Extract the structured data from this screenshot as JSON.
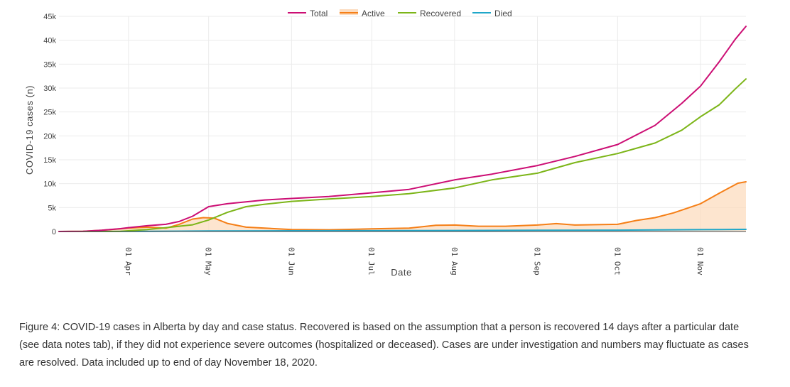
{
  "caption": "Figure 4: COVID-19 cases in Alberta by day and case status. Recovered is based on the assumption that a person is recovered 14 days after a particular date (see data notes tab), if they did not experience severe outcomes (hospitalized or deceased). Cases are under investigation and numbers may fluctuate as cases are resolved. Data included up to end of day November 18, 2020.",
  "chart_data": {
    "type": "line",
    "title": "",
    "xlabel": "Date",
    "ylabel": "COVID-19 cases (n)",
    "xlim": [
      "2020-03-06",
      "2020-11-18"
    ],
    "ylim": [
      0,
      45000
    ],
    "grid": true,
    "legend_position": "top-center",
    "x_ticks": [
      {
        "date": "2020-04-01",
        "label": "01 Apr"
      },
      {
        "date": "2020-05-01",
        "label": "01 May"
      },
      {
        "date": "2020-06-01",
        "label": "01 Jun"
      },
      {
        "date": "2020-07-01",
        "label": "01 Jul"
      },
      {
        "date": "2020-08-01",
        "label": "01 Aug"
      },
      {
        "date": "2020-09-01",
        "label": "01 Sep"
      },
      {
        "date": "2020-10-01",
        "label": "01 Oct"
      },
      {
        "date": "2020-11-01",
        "label": "01 Nov"
      }
    ],
    "y_ticks": [
      {
        "value": 0,
        "label": "0"
      },
      {
        "value": 5000,
        "label": "5k"
      },
      {
        "value": 10000,
        "label": "10k"
      },
      {
        "value": 15000,
        "label": "15k"
      },
      {
        "value": 20000,
        "label": "20k"
      },
      {
        "value": 25000,
        "label": "25k"
      },
      {
        "value": 30000,
        "label": "30k"
      },
      {
        "value": 35000,
        "label": "35k"
      },
      {
        "value": 40000,
        "label": "40k"
      },
      {
        "value": 45000,
        "label": "45k"
      }
    ],
    "series": [
      {
        "name": "Total",
        "color": "#cc0e74",
        "fill": false,
        "points": [
          [
            "2020-03-06",
            0
          ],
          [
            "2020-03-15",
            50
          ],
          [
            "2020-03-22",
            250
          ],
          [
            "2020-03-29",
            600
          ],
          [
            "2020-04-01",
            800
          ],
          [
            "2020-04-08",
            1200
          ],
          [
            "2020-04-15",
            1500
          ],
          [
            "2020-04-20",
            2100
          ],
          [
            "2020-04-25",
            3200
          ],
          [
            "2020-05-01",
            5200
          ],
          [
            "2020-05-08",
            5800
          ],
          [
            "2020-05-15",
            6200
          ],
          [
            "2020-05-22",
            6600
          ],
          [
            "2020-06-01",
            6900
          ],
          [
            "2020-06-15",
            7300
          ],
          [
            "2020-07-01",
            8100
          ],
          [
            "2020-07-15",
            8800
          ],
          [
            "2020-08-01",
            10800
          ],
          [
            "2020-08-15",
            12000
          ],
          [
            "2020-09-01",
            13800
          ],
          [
            "2020-09-15",
            15700
          ],
          [
            "2020-10-01",
            18200
          ],
          [
            "2020-10-15",
            22200
          ],
          [
            "2020-10-25",
            26800
          ],
          [
            "2020-11-01",
            30400
          ],
          [
            "2020-11-08",
            35500
          ],
          [
            "2020-11-14",
            40200
          ],
          [
            "2020-11-18",
            42900
          ]
        ]
      },
      {
        "name": "Active",
        "color": "#f57f17",
        "fill": true,
        "fill_color": "#fcdcbf",
        "points": [
          [
            "2020-03-06",
            0
          ],
          [
            "2020-03-15",
            50
          ],
          [
            "2020-03-22",
            250
          ],
          [
            "2020-03-29",
            550
          ],
          [
            "2020-04-01",
            700
          ],
          [
            "2020-04-08",
            900
          ],
          [
            "2020-04-15",
            700
          ],
          [
            "2020-04-20",
            1500
          ],
          [
            "2020-04-25",
            2600
          ],
          [
            "2020-04-29",
            2900
          ],
          [
            "2020-05-03",
            2800
          ],
          [
            "2020-05-08",
            1700
          ],
          [
            "2020-05-15",
            900
          ],
          [
            "2020-05-22",
            700
          ],
          [
            "2020-06-01",
            400
          ],
          [
            "2020-06-15",
            350
          ],
          [
            "2020-07-01",
            550
          ],
          [
            "2020-07-15",
            700
          ],
          [
            "2020-07-25",
            1300
          ],
          [
            "2020-08-01",
            1350
          ],
          [
            "2020-08-10",
            1100
          ],
          [
            "2020-08-20",
            1100
          ],
          [
            "2020-09-01",
            1350
          ],
          [
            "2020-09-08",
            1650
          ],
          [
            "2020-09-15",
            1350
          ],
          [
            "2020-09-25",
            1450
          ],
          [
            "2020-10-01",
            1500
          ],
          [
            "2020-10-08",
            2300
          ],
          [
            "2020-10-15",
            2900
          ],
          [
            "2020-10-22",
            3900
          ],
          [
            "2020-11-01",
            5800
          ],
          [
            "2020-11-08",
            8000
          ],
          [
            "2020-11-15",
            10100
          ],
          [
            "2020-11-18",
            10400
          ]
        ]
      },
      {
        "name": "Recovered",
        "color": "#7cb518",
        "fill": false,
        "points": [
          [
            "2020-03-06",
            0
          ],
          [
            "2020-03-29",
            50
          ],
          [
            "2020-04-08",
            400
          ],
          [
            "2020-04-15",
            800
          ],
          [
            "2020-04-25",
            1400
          ],
          [
            "2020-05-01",
            2400
          ],
          [
            "2020-05-08",
            4000
          ],
          [
            "2020-05-15",
            5200
          ],
          [
            "2020-05-22",
            5700
          ],
          [
            "2020-06-01",
            6300
          ],
          [
            "2020-06-15",
            6800
          ],
          [
            "2020-07-01",
            7300
          ],
          [
            "2020-07-15",
            7900
          ],
          [
            "2020-08-01",
            9100
          ],
          [
            "2020-08-15",
            10800
          ],
          [
            "2020-09-01",
            12200
          ],
          [
            "2020-09-15",
            14400
          ],
          [
            "2020-10-01",
            16300
          ],
          [
            "2020-10-15",
            18500
          ],
          [
            "2020-10-25",
            21200
          ],
          [
            "2020-11-01",
            24000
          ],
          [
            "2020-11-08",
            26500
          ],
          [
            "2020-11-14",
            29800
          ],
          [
            "2020-11-18",
            31900
          ]
        ]
      },
      {
        "name": "Died",
        "color": "#1fa7c9",
        "fill": false,
        "points": [
          [
            "2020-03-06",
            0
          ],
          [
            "2020-04-01",
            10
          ],
          [
            "2020-05-01",
            100
          ],
          [
            "2020-06-01",
            150
          ],
          [
            "2020-07-01",
            160
          ],
          [
            "2020-08-01",
            210
          ],
          [
            "2020-09-01",
            250
          ],
          [
            "2020-10-01",
            280
          ],
          [
            "2020-11-01",
            390
          ],
          [
            "2020-11-18",
            450
          ]
        ]
      }
    ]
  }
}
